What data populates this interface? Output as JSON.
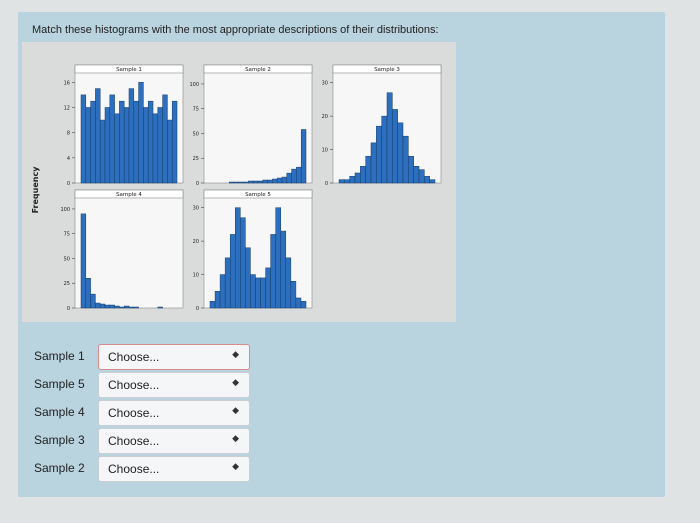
{
  "question": "Match these histograms with the most appropriate descriptions of their distributions:",
  "figure": {
    "y_label": "Frequency",
    "color": "#2c6fbe",
    "panels": [
      {
        "title": "Sample 1",
        "ylim": [
          0,
          17
        ],
        "yticks": [
          0,
          4,
          8,
          12,
          16
        ],
        "values": [
          14,
          12,
          13,
          15,
          10,
          12,
          14,
          11,
          13,
          12,
          15,
          13,
          16,
          12,
          13,
          11,
          12,
          14,
          10,
          13
        ]
      },
      {
        "title": "Sample 2",
        "ylim": [
          0,
          108
        ],
        "yticks": [
          0,
          25,
          50,
          75,
          100
        ],
        "values": [
          0,
          0,
          0,
          0,
          1,
          1,
          1,
          1,
          2,
          2,
          2,
          3,
          3,
          4,
          5,
          6,
          10,
          14,
          16,
          54
        ]
      },
      {
        "title": "Sample 3",
        "ylim": [
          0,
          32
        ],
        "yticks": [
          0,
          10,
          20,
          30
        ],
        "values": [
          1,
          1,
          2,
          3,
          5,
          8,
          12,
          17,
          20,
          27,
          22,
          18,
          14,
          8,
          5,
          4,
          2,
          1
        ]
      },
      {
        "title": "Sample 4",
        "ylim": [
          0,
          108
        ],
        "yticks": [
          0,
          25,
          50,
          75,
          100
        ],
        "values": [
          95,
          30,
          14,
          5,
          4,
          3,
          3,
          2,
          1,
          2,
          1,
          1,
          0,
          0,
          0,
          0,
          1,
          0,
          0,
          0
        ]
      },
      {
        "title": "Sample 5",
        "ylim": [
          0,
          32
        ],
        "yticks": [
          0,
          10,
          20,
          30
        ],
        "values": [
          2,
          5,
          10,
          15,
          22,
          30,
          27,
          18,
          10,
          9,
          9,
          12,
          22,
          30,
          23,
          15,
          8,
          3,
          2
        ]
      }
    ]
  },
  "rows": [
    {
      "label": "Sample 1",
      "select": "Choose..."
    },
    {
      "label": "Sample 5",
      "select": "Choose..."
    },
    {
      "label": "Sample 4",
      "select": "Choose..."
    },
    {
      "label": "Sample 3",
      "select": "Choose..."
    },
    {
      "label": "Sample 2",
      "select": "Choose..."
    }
  ]
}
